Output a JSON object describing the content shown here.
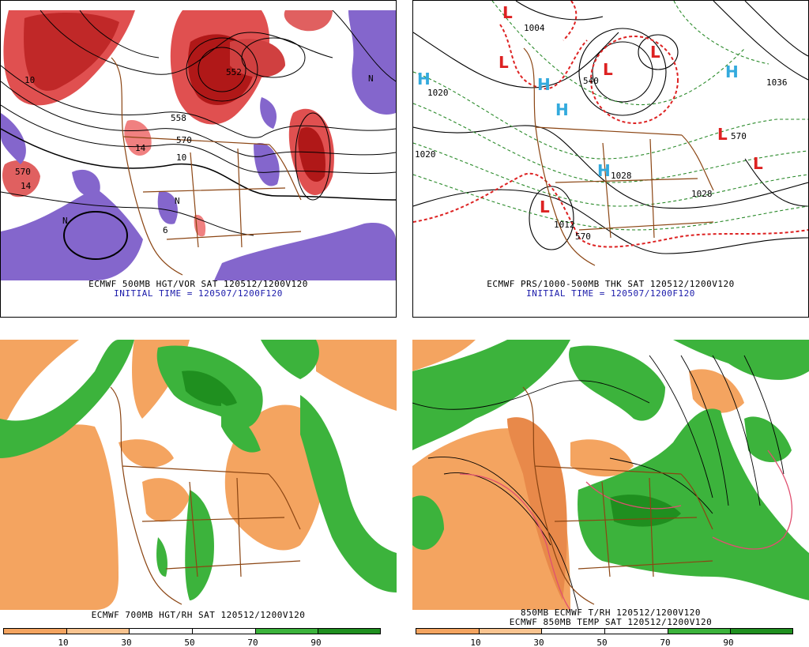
{
  "panels": {
    "p1": {
      "caption_line1": "ECMWF 500MB HGT/VOR SAT 120512/1200V120",
      "caption_line2": "INITIAL TIME = 120507/1200F120",
      "labels": [
        "570",
        "570",
        "552",
        "558",
        "14",
        "14",
        "10",
        "10",
        "6",
        "N",
        "N",
        "N"
      ]
    },
    "p2": {
      "caption_line1": "ECMWF PRS/1000-500MB THK SAT 120512/1200V120",
      "caption_line2": "INITIAL TIME = 120507/1200F120",
      "labels": [
        "1020",
        "1020",
        "1036",
        "1004",
        "1028",
        "1028",
        "1012",
        "570",
        "570",
        "540"
      ]
    },
    "p3": {
      "caption_line1": "ECMWF 700MB HGT/RH SAT 120512/1200V120",
      "scale_ticks": [
        "10",
        "30",
        "50",
        "70",
        "90"
      ]
    },
    "p4": {
      "caption_line1": "850MB ECMWF T/RH 120512/1200V120",
      "caption_line2": "ECMWF 850MB TEMP SAT 120512/1200V120",
      "scale_ticks": [
        "10",
        "30",
        "50",
        "70",
        "90"
      ]
    }
  },
  "colors": {
    "vort_red": "#d93030",
    "vort_pink": "#f08080",
    "vort_purple": "#8466cc",
    "high_cyan": "#33aadd",
    "low_red": "#dd2222",
    "rh_orange": "#f4a460",
    "rh_green": "#3cb33c",
    "rh_dkgreen": "#1f8f1f",
    "caption_black": "#000000",
    "caption_blue": "#1a1aaa",
    "borders": "#8b4513"
  }
}
